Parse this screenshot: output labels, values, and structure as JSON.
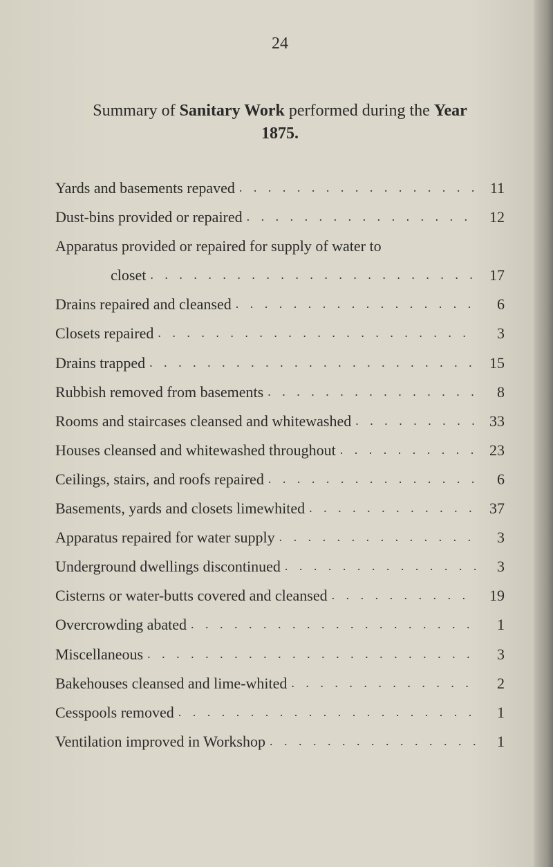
{
  "page_number": "24",
  "title_prefix": "Summary of",
  "title_bold1": "Sanitary Work",
  "title_middle": "performed during the",
  "title_bold2": "Year",
  "year": "1875.",
  "items": [
    {
      "label": "Yards and basements repaved",
      "value": "11"
    },
    {
      "label": "Dust-bins provided or repaired",
      "value": "12"
    },
    {
      "label": "Apparatus provided or repaired for supply of water to",
      "cont_label": "closet",
      "value": "17"
    },
    {
      "label": "Drains repaired and cleansed",
      "value": "6"
    },
    {
      "label": "Closets repaired",
      "value": "3"
    },
    {
      "label": "Drains trapped",
      "value": "15"
    },
    {
      "label": "Rubbish removed from basements",
      "value": "8"
    },
    {
      "label": "Rooms and staircases cleansed and whitewashed",
      "value": "33"
    },
    {
      "label": "Houses cleansed and whitewashed throughout",
      "value": "23"
    },
    {
      "label": "Ceilings, stairs, and roofs repaired",
      "value": "6"
    },
    {
      "label": "Basements, yards and closets limewhited",
      "value": "37"
    },
    {
      "label": "Apparatus repaired for water supply",
      "value": "3"
    },
    {
      "label": "Underground dwellings discontinued",
      "value": "3"
    },
    {
      "label": "Cisterns or water-butts covered and cleansed",
      "value": "19"
    },
    {
      "label": "Overcrowding abated",
      "value": "1"
    },
    {
      "label": "Miscellaneous",
      "value": "3"
    },
    {
      "label": "Bakehouses cleansed and lime-whited",
      "value": "2"
    },
    {
      "label": "Cesspools removed",
      "value": "1"
    },
    {
      "label": "Ventilation improved in Workshop",
      "value": "1"
    }
  ],
  "dot_fill": ". . . . . . . . . . . . . . . . . . . . . . . . . . . . . . . . . . . . . . . .",
  "colors": {
    "bg": "#d8d4c8",
    "text": "#2a2a2a"
  }
}
